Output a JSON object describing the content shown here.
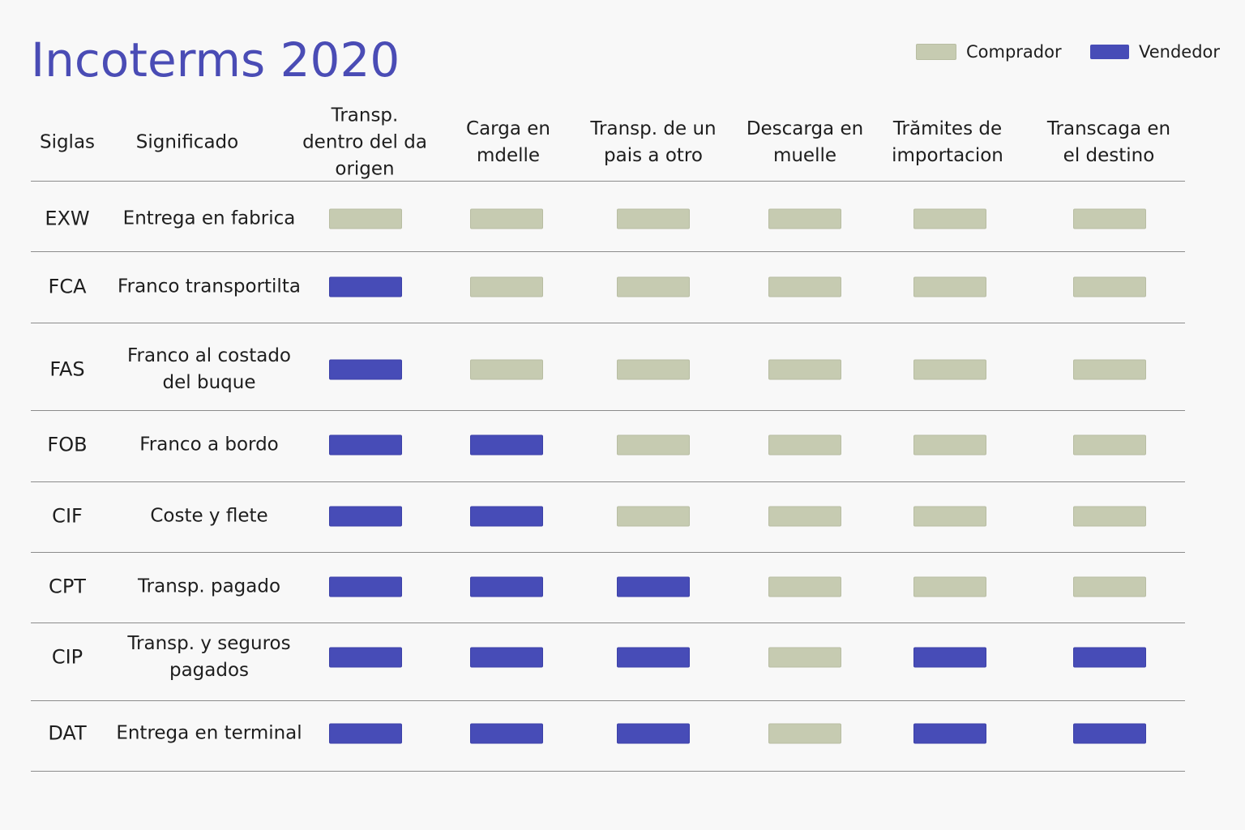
{
  "title": "Incoterms 2020",
  "colors": {
    "comprador": "#c6cbb1",
    "vendedor": "#474cb7",
    "title": "#4a4cb5"
  },
  "legend": [
    {
      "key": "C",
      "label": "Comprador",
      "color": "#c6cbb1"
    },
    {
      "key": "V",
      "label": "Vendedor",
      "color": "#474cb7"
    }
  ],
  "chart_data": {
    "type": "table",
    "title": "Incoterms 2020",
    "columns": [
      "Siglas",
      "Significado",
      "Transp.\ndentro del da\norigen",
      "Carga en\nmdelle",
      "Transp. de un\npais a otro",
      "Descarga en\nmuelle",
      "Trămites de\nimportacion",
      "Transcaga en\nel destino"
    ],
    "legend": {
      "C": "Comprador",
      "V": "Vendedor"
    },
    "rows": [
      {
        "sigla": "EXW",
        "significado": "Entrega en fabrica",
        "values": [
          "C",
          "C",
          "C",
          "C",
          "C",
          "C"
        ]
      },
      {
        "sigla": "FCA",
        "significado": "Franco transportilta",
        "values": [
          "V",
          "C",
          "C",
          "C",
          "C",
          "C"
        ]
      },
      {
        "sigla": "FAS",
        "significado": "Franco al costado\ndel buque",
        "values": [
          "V",
          "C",
          "C",
          "C",
          "C",
          "C"
        ]
      },
      {
        "sigla": "FOB",
        "significado": "Franco a bordo",
        "values": [
          "V",
          "V",
          "C",
          "C",
          "C",
          "C"
        ]
      },
      {
        "sigla": "CIF",
        "significado": "Coste y flete",
        "values": [
          "V",
          "V",
          "C",
          "C",
          "C",
          "C"
        ]
      },
      {
        "sigla": "CPT",
        "significado": "Transp. pagado",
        "values": [
          "V",
          "V",
          "V",
          "C",
          "C",
          "C"
        ]
      },
      {
        "sigla": "CIP",
        "significado": "Transp. y seguros\npagados",
        "values": [
          "V",
          "V",
          "V",
          "C",
          "V",
          "V"
        ]
      },
      {
        "sigla": "DAT",
        "significado": "Entrega en terminal",
        "values": [
          "V",
          "V",
          "V",
          "C",
          "V",
          "V"
        ]
      }
    ]
  }
}
